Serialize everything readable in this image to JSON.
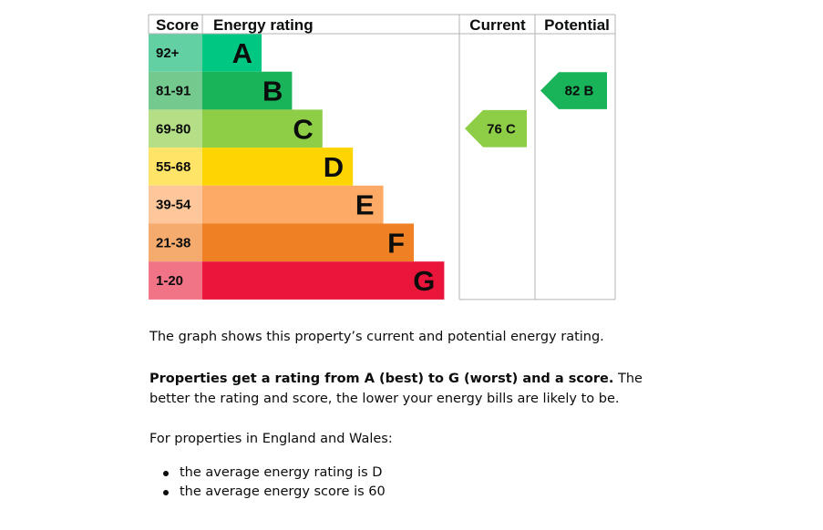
{
  "chart_data": {
    "type": "table",
    "headers": {
      "score": "Score",
      "rating": "Energy rating",
      "current": "Current",
      "potential": "Potential"
    },
    "bands": [
      {
        "range": "92+",
        "letter": "A",
        "color": "#00c781",
        "score_color": "#63d0a4"
      },
      {
        "range": "81-91",
        "letter": "B",
        "color": "#19b459",
        "score_color": "#74c98e"
      },
      {
        "range": "69-80",
        "letter": "C",
        "color": "#8dce46",
        "score_color": "#b4df86"
      },
      {
        "range": "55-68",
        "letter": "D",
        "color": "#ffd500",
        "score_color": "#ffe468"
      },
      {
        "range": "39-54",
        "letter": "E",
        "color": "#fcaa65",
        "score_color": "#fdc79b"
      },
      {
        "range": "21-38",
        "letter": "F",
        "color": "#ef8023",
        "score_color": "#f5ab6d"
      },
      {
        "range": "1-20",
        "letter": "G",
        "color": "#e9153b",
        "score_color": "#f07386"
      }
    ],
    "current": {
      "label": "76 C",
      "score": 76,
      "band": "C",
      "color": "#8dce46"
    },
    "potential": {
      "label": "82 B",
      "score": 82,
      "band": "B",
      "color": "#19b459"
    }
  },
  "text": {
    "intro": "The graph shows this property’s current and potential energy rating.",
    "bold_lead": "Properties get a rating from A (best) to G (worst) and a score.",
    "rest": " The better the rating and score, the lower your energy bills are likely to be.",
    "england_wales": "For properties in England and Wales:",
    "bullets": [
      "the average energy rating is D",
      "the average energy score is 60"
    ]
  }
}
